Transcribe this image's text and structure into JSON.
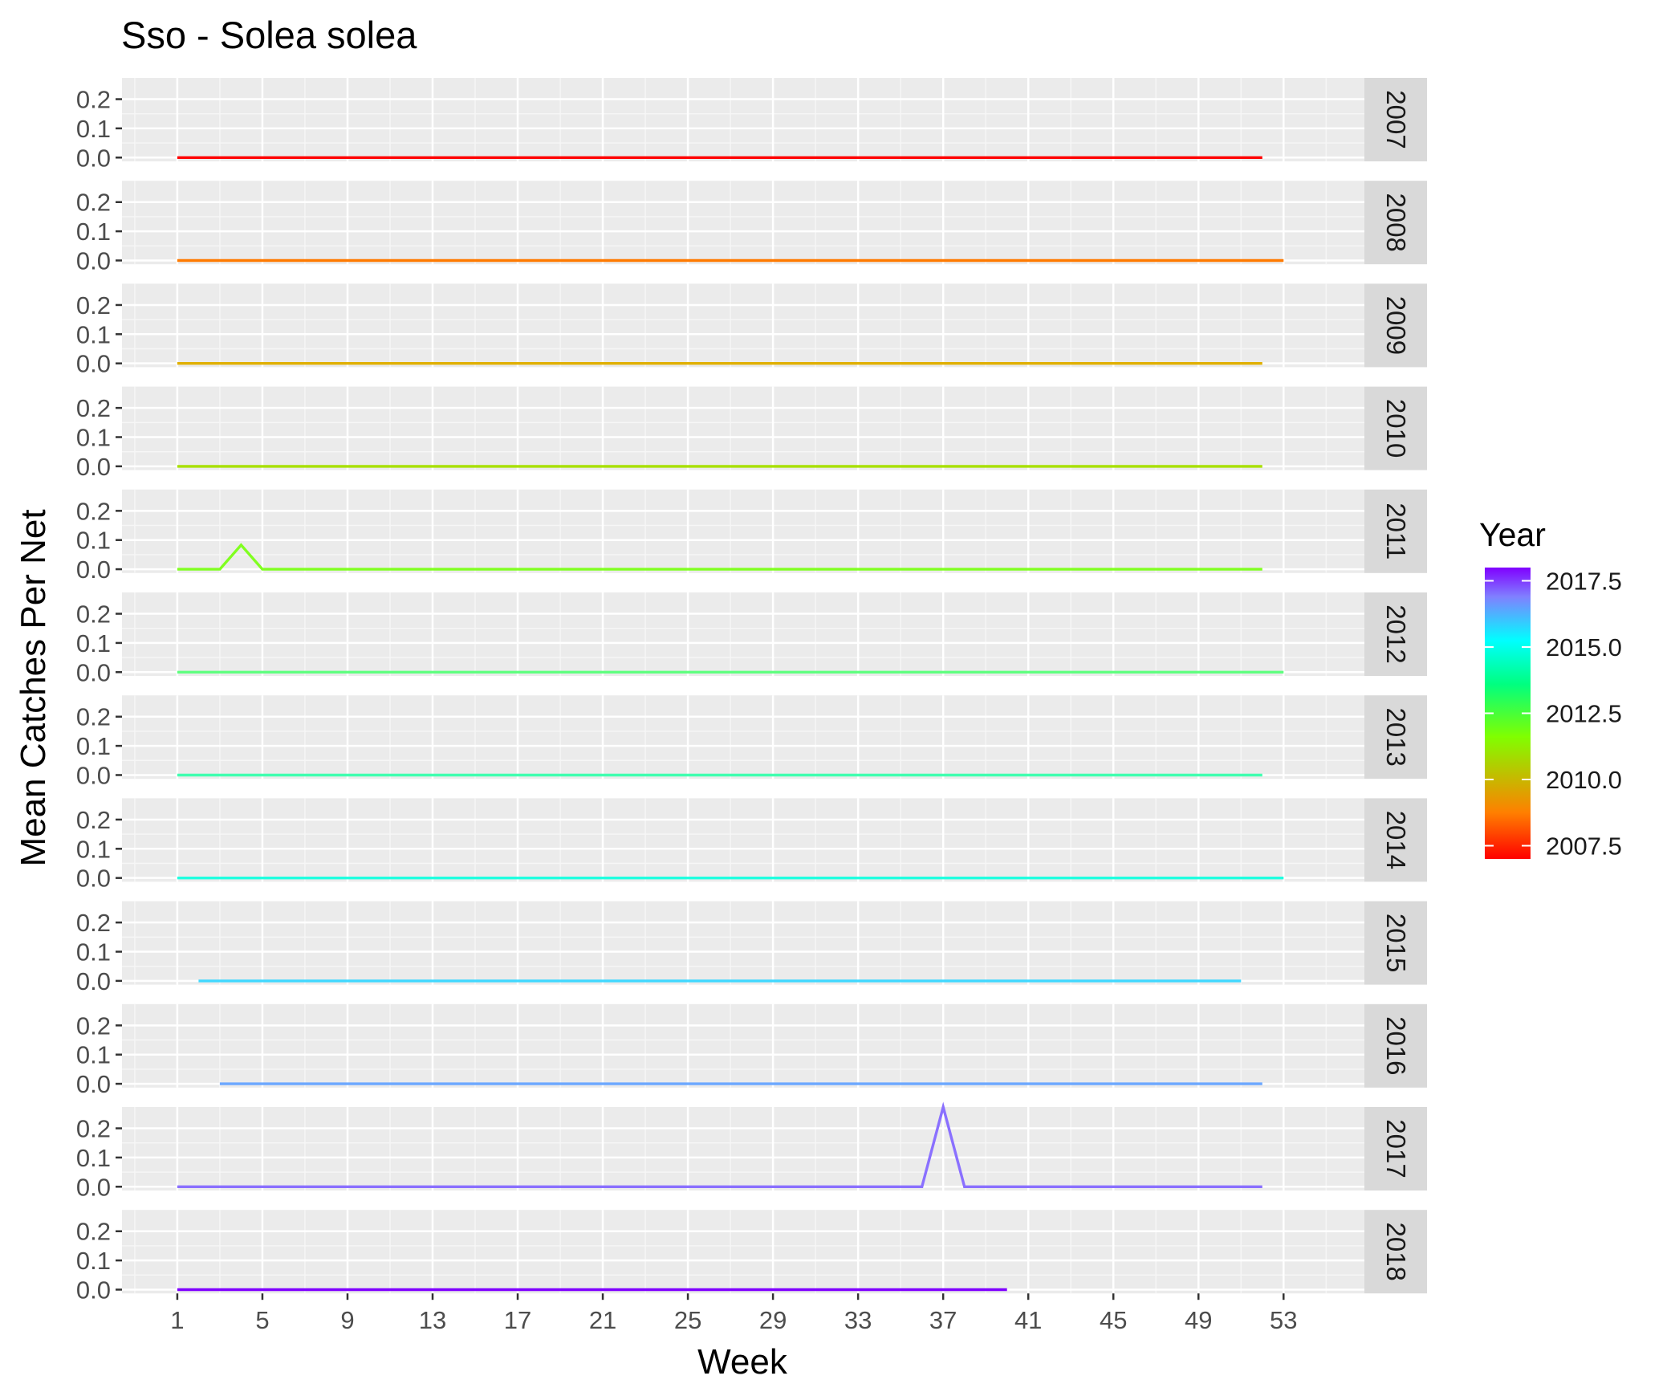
{
  "chart_data": {
    "type": "line",
    "title": "Sso - Solea solea",
    "xlabel": "Week",
    "ylabel": "Mean Catches Per Net",
    "xlim": [
      -1.6,
      56.8
    ],
    "ylim": [
      -0.013,
      0.273
    ],
    "x_ticks": [
      "1",
      "5",
      "9",
      "13",
      "17",
      "21",
      "25",
      "29",
      "33",
      "37",
      "41",
      "45",
      "49",
      "53"
    ],
    "y_ticks": [
      "0.0",
      "0.1",
      "0.2"
    ],
    "grid": true,
    "facet_by": "year (one row per year, strip on right)",
    "legend": {
      "title": "Year",
      "position": "right",
      "type": "colorbar",
      "min": 2007,
      "max": 2018,
      "labels": [
        "2017.5",
        "2015.0",
        "2012.5",
        "2010.0",
        "2007.5"
      ],
      "label_values": [
        2017.5,
        2015.0,
        2012.5,
        2010.0,
        2007.5
      ],
      "gradient": [
        "#FF0000",
        "#FF8000",
        "#80FF00",
        "#00FF80",
        "#00FFFF",
        "#8080FF",
        "#8000FF"
      ]
    },
    "series": [
      {
        "name": "2007",
        "color": "#FF0000",
        "points": [
          [
            1,
            0
          ],
          [
            52,
            0
          ]
        ]
      },
      {
        "name": "2008",
        "color": "#FF7A00",
        "points": [
          [
            1,
            0
          ],
          [
            53,
            0
          ]
        ]
      },
      {
        "name": "2009",
        "color": "#E0B000",
        "points": [
          [
            1,
            0
          ],
          [
            52,
            0
          ]
        ]
      },
      {
        "name": "2010",
        "color": "#A8E000",
        "points": [
          [
            1,
            0
          ],
          [
            52,
            0
          ]
        ]
      },
      {
        "name": "2011",
        "color": "#80FF20",
        "points": [
          [
            1,
            0
          ],
          [
            3,
            0
          ],
          [
            4,
            0.083
          ],
          [
            5,
            0
          ],
          [
            52,
            0
          ]
        ]
      },
      {
        "name": "2012",
        "color": "#60FF80",
        "points": [
          [
            1,
            0
          ],
          [
            53,
            0
          ]
        ]
      },
      {
        "name": "2013",
        "color": "#40FFB0",
        "points": [
          [
            1,
            0
          ],
          [
            52,
            0
          ]
        ]
      },
      {
        "name": "2014",
        "color": "#20FFE0",
        "points": [
          [
            1,
            0
          ],
          [
            53,
            0
          ]
        ]
      },
      {
        "name": "2015",
        "color": "#40D8FF",
        "points": [
          [
            2,
            0
          ],
          [
            51,
            0
          ]
        ]
      },
      {
        "name": "2016",
        "color": "#6CA8FF",
        "points": [
          [
            3,
            0
          ],
          [
            52,
            0
          ]
        ]
      },
      {
        "name": "2017",
        "color": "#8A70FF",
        "points": [
          [
            1,
            0
          ],
          [
            36,
            0
          ],
          [
            37,
            0.273
          ],
          [
            38,
            0
          ],
          [
            52,
            0
          ]
        ]
      },
      {
        "name": "2018",
        "color": "#7F00FF",
        "points": [
          [
            1,
            0
          ],
          [
            40,
            0
          ]
        ]
      }
    ]
  }
}
